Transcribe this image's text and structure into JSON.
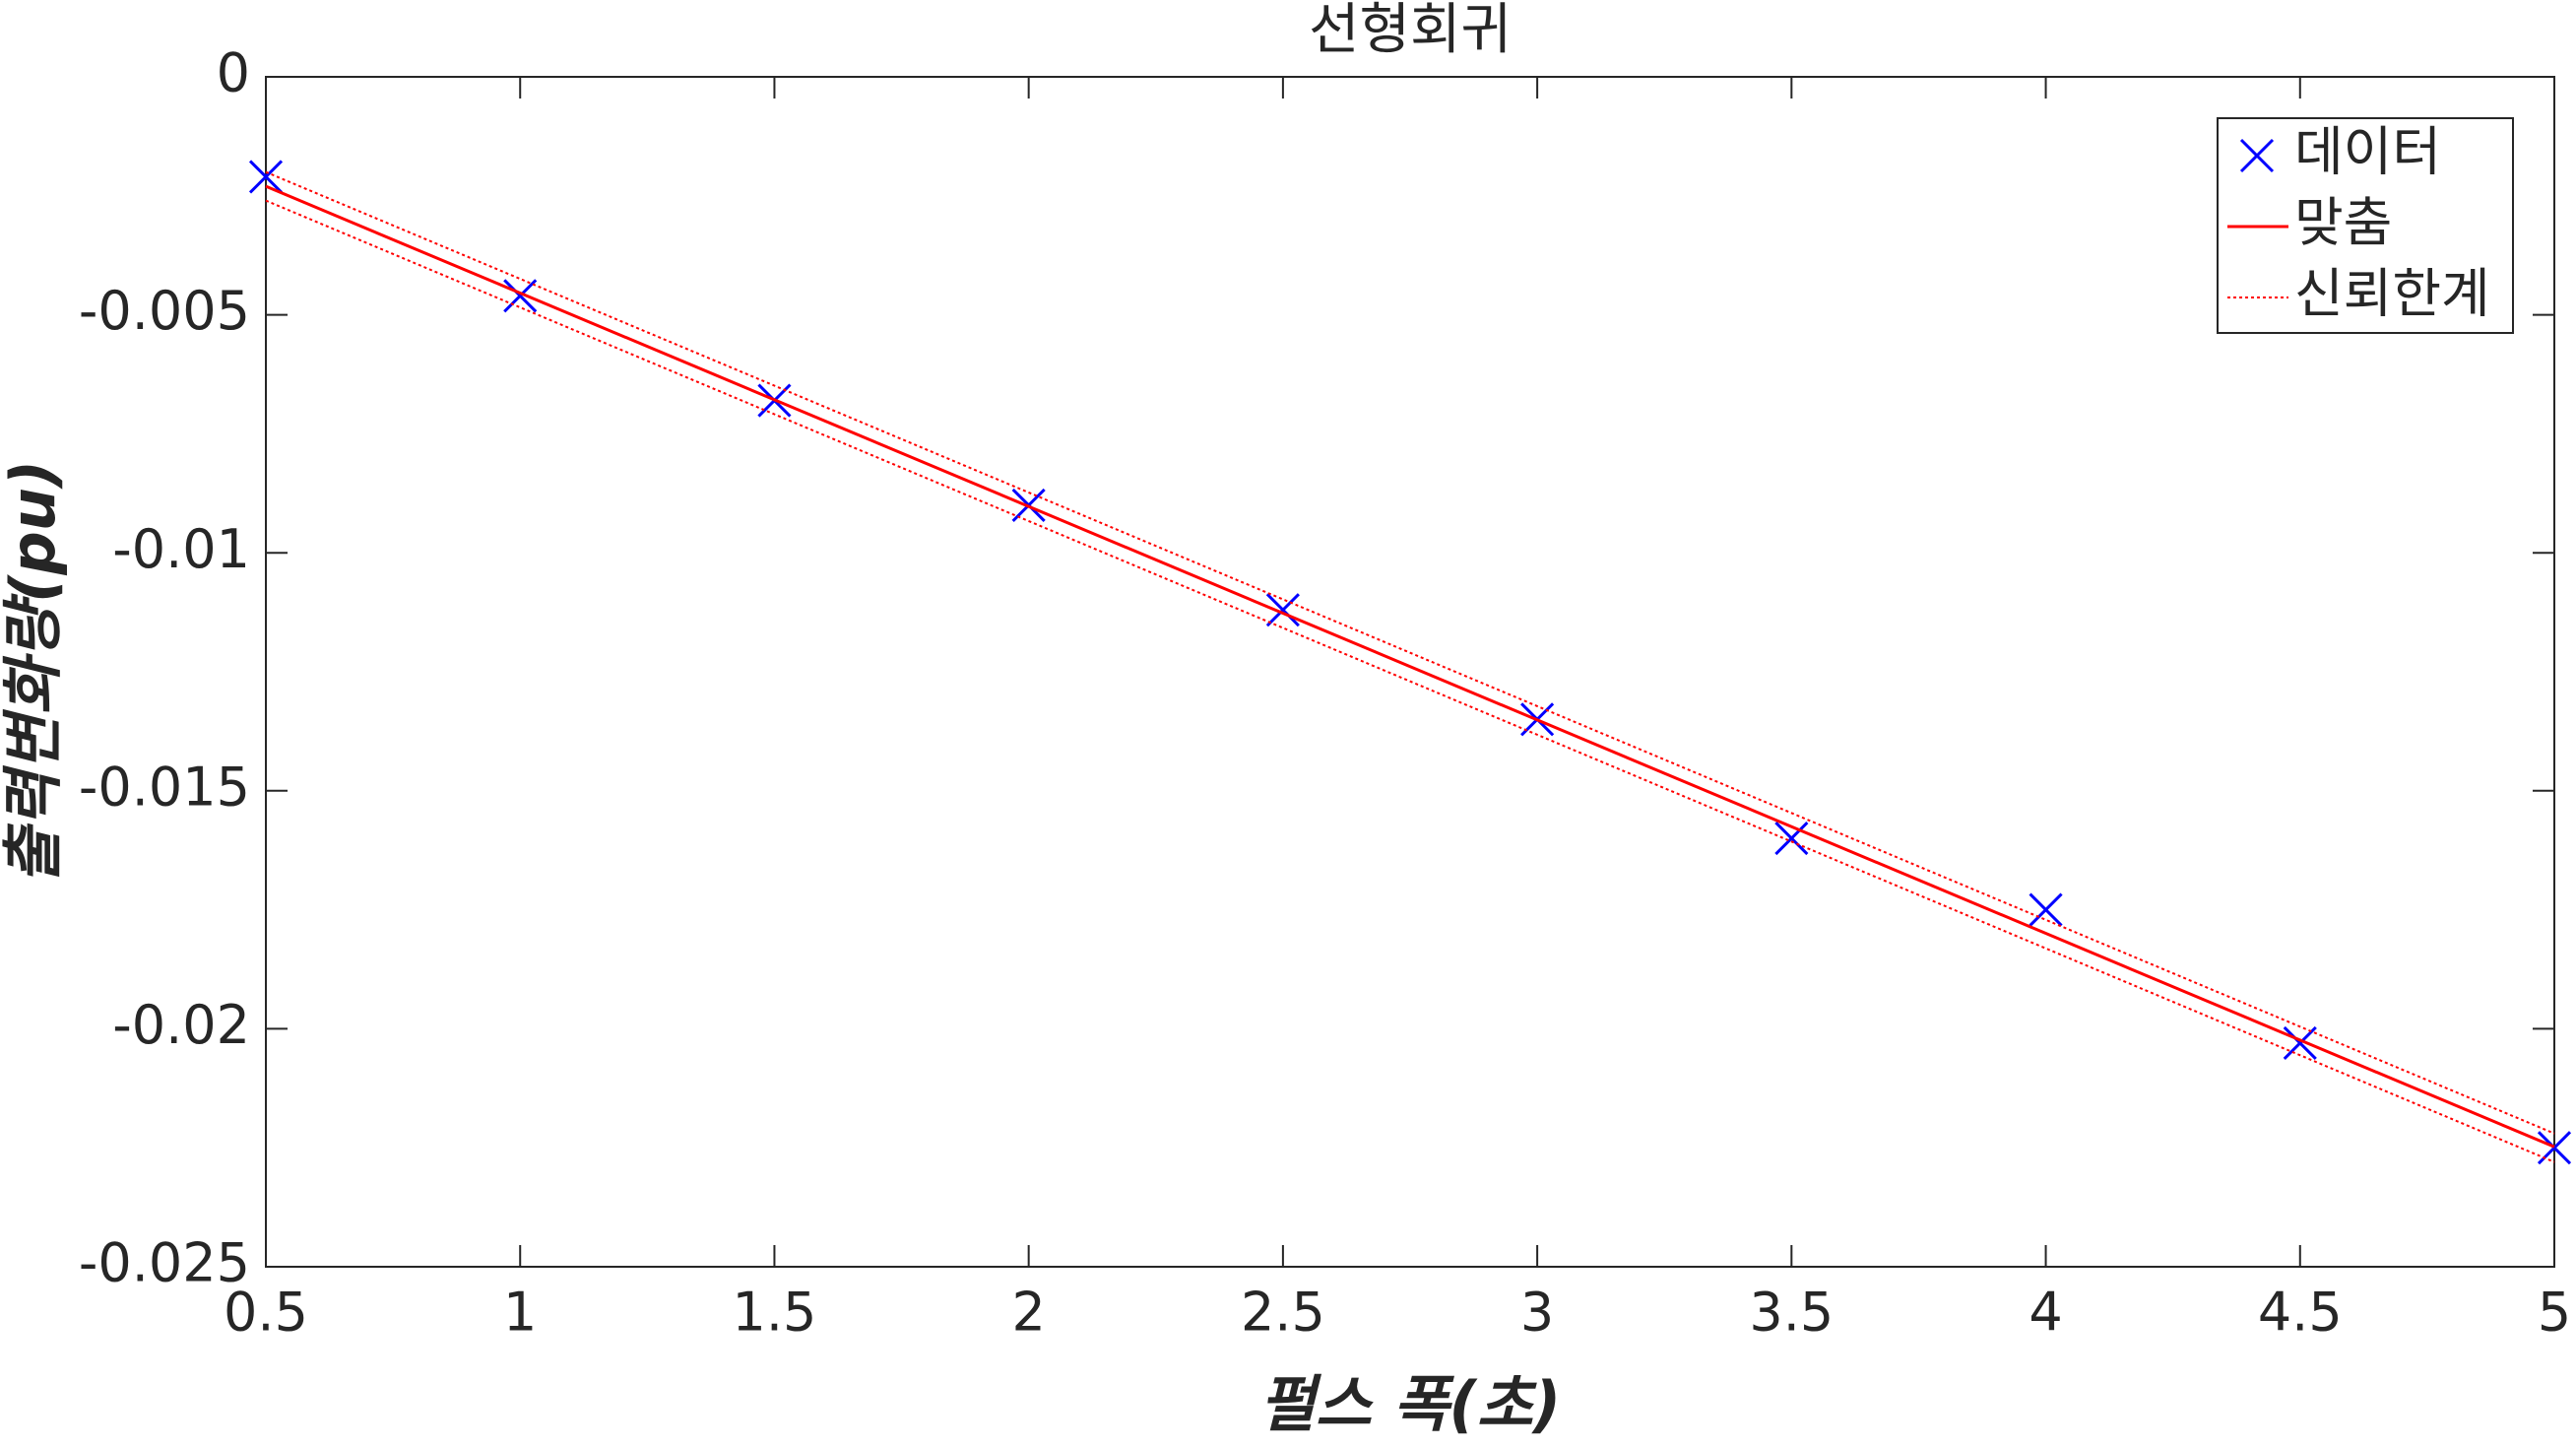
{
  "chart_data": {
    "type": "line",
    "title": "선형회귀",
    "x_label": "펄스 폭(초)",
    "y_label": "출력변화량(pu)",
    "xlim": [
      0.5,
      5
    ],
    "xticks": [
      0.5,
      1,
      1.5,
      2,
      2.5,
      3,
      3.5,
      4,
      4.5,
      5
    ],
    "ylim": [
      -0.025,
      0
    ],
    "yticks": [
      -0.025,
      -0.02,
      -0.015,
      -0.01,
      -0.005,
      0
    ],
    "grid": false,
    "legend": "upper right",
    "series": [
      {
        "name": "데이터",
        "color": "#0000ff",
        "style": "marker",
        "x": [
          0.5,
          1,
          1.5,
          2,
          2.5,
          3,
          3.5,
          4,
          4.5,
          5
        ],
        "values": [
          -0.0021,
          -0.0046,
          -0.0068,
          -0.009,
          -0.0112,
          -0.0135,
          -0.016,
          -0.0175,
          -0.0203,
          -0.0225
        ]
      },
      {
        "name": "맞춤",
        "color": "#ff0000",
        "style": "solid",
        "x": [
          0.5,
          5
        ],
        "values": [
          -0.0023,
          -0.02248
        ]
      },
      {
        "name": "신뢰한계",
        "color": "#ff0000",
        "style": "dotted",
        "x": [
          0.5,
          5
        ],
        "values": [
          -0.002,
          -0.0222
        ]
      },
      {
        "color": "#ff0000",
        "style": "dotted",
        "x": [
          0.5,
          5
        ],
        "values": [
          -0.0026,
          -0.0228
        ]
      }
    ]
  }
}
